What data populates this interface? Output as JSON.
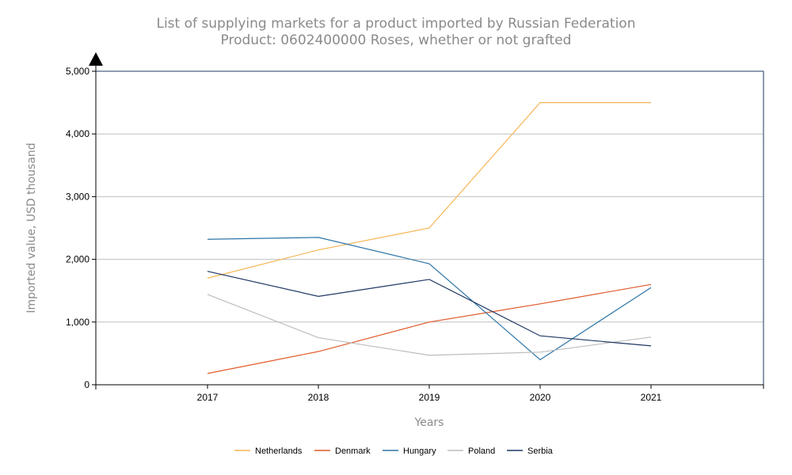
{
  "chart_data": {
    "type": "line",
    "title": "List of supplying markets for a product imported by Russian Federation",
    "subtitle": "Product: 0602400000 Roses, whether or not grafted",
    "xlabel": "Years",
    "ylabel": "Imported value, USD thousand",
    "categories": [
      "2017",
      "2018",
      "2019",
      "2020",
      "2021"
    ],
    "ylim": [
      0,
      5000
    ],
    "yticks": [
      "0",
      "1,000",
      "2,000",
      "3,000",
      "4,000",
      "5,000"
    ],
    "grid": true,
    "legend_position": "bottom",
    "series": [
      {
        "name": "Netherlands",
        "color": "#f5b553",
        "values": [
          1700,
          2150,
          2500,
          4500,
          4500
        ]
      },
      {
        "name": "Denmark",
        "color": "#e05a2b",
        "values": [
          180,
          530,
          1000,
          1290,
          1600
        ]
      },
      {
        "name": "Hungary",
        "color": "#2e75a6",
        "values": [
          2320,
          2350,
          1930,
          400,
          1550
        ]
      },
      {
        "name": "Poland",
        "color": "#bdbdbd",
        "values": [
          1440,
          750,
          470,
          520,
          760
        ]
      },
      {
        "name": "Serbia",
        "color": "#1f3864",
        "values": [
          1810,
          1410,
          1680,
          780,
          620
        ]
      }
    ]
  }
}
